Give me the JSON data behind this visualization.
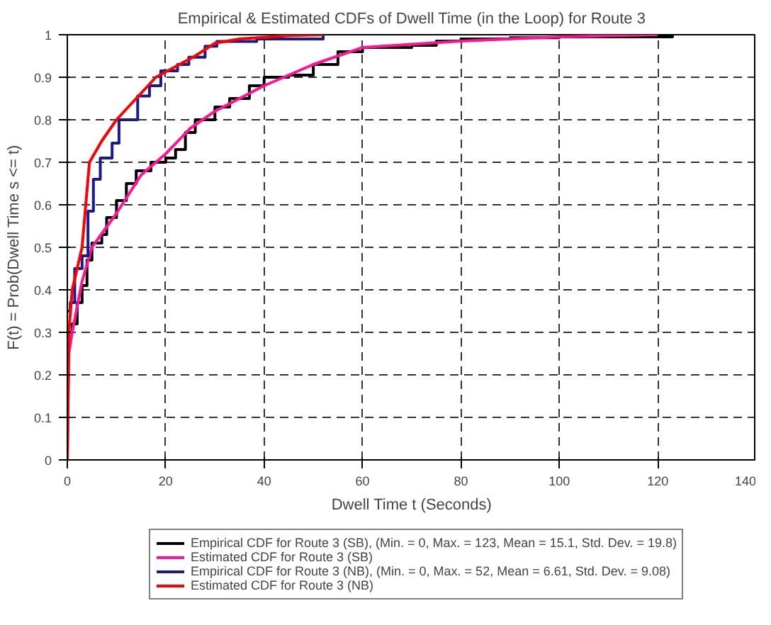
{
  "chart_data": {
    "type": "line",
    "title": "Empirical & Estimated CDFs of Dwell Time (in the Loop) for Route 3",
    "xlabel": "Dwell Time t (Seconds)",
    "ylabel": "F(t) = Prob(Dwell Time s <= t)",
    "xlim": [
      0,
      140
    ],
    "ylim": [
      0,
      1
    ],
    "xticks": [
      0,
      20,
      40,
      60,
      80,
      100,
      120,
      140
    ],
    "yticks": [
      0,
      0.1,
      0.2,
      0.3,
      0.4,
      0.5,
      0.6,
      0.7,
      0.8,
      0.9,
      1
    ],
    "grid": true,
    "legend": "bottom",
    "line_style": "solid",
    "series": [
      {
        "name": "Empirical CDF for Route 3 (SB), (Min. = 0, Max. = 123, Mean = 15.1, Std. Dev. = 19.8)",
        "type": "step",
        "color": "#000000",
        "x": [
          0,
          1,
          2,
          3,
          4,
          5,
          7,
          8,
          10,
          12,
          14,
          17,
          20,
          22,
          24,
          26,
          30,
          33,
          37,
          40,
          45,
          50,
          55,
          60,
          70,
          75,
          80,
          90,
          100,
          123
        ],
        "values": [
          0.3,
          0.32,
          0.37,
          0.41,
          0.47,
          0.51,
          0.53,
          0.57,
          0.61,
          0.65,
          0.68,
          0.7,
          0.71,
          0.73,
          0.77,
          0.8,
          0.83,
          0.85,
          0.88,
          0.9,
          0.905,
          0.93,
          0.96,
          0.97,
          0.975,
          0.985,
          0.99,
          0.993,
          0.995,
          1
        ]
      },
      {
        "name": "Estimated CDF for Route 3 (SB)",
        "color": "#ff1493",
        "x": [
          0,
          0.3,
          1,
          3,
          5,
          10,
          15,
          20,
          25,
          30,
          40,
          50,
          60,
          80,
          100,
          120
        ],
        "values": [
          0,
          0.25,
          0.3,
          0.42,
          0.5,
          0.58,
          0.67,
          0.72,
          0.78,
          0.82,
          0.88,
          0.93,
          0.97,
          0.985,
          0.995,
          1
        ]
      },
      {
        "name": "Empirical CDF for Route 3 (NB), (Min. = 0, Max. = 52, Mean = 6.61, Std. Dev. = 9.08)",
        "type": "step",
        "color": "#1a1a8c",
        "x": [
          0,
          0.6,
          1.5,
          3,
          4.2,
          5.3,
          6.7,
          9.1,
          10.5,
          14.3,
          16.7,
          19,
          22.4,
          24.7,
          28,
          30.4,
          38.5,
          52
        ],
        "values": [
          0.35,
          0.37,
          0.45,
          0.48,
          0.585,
          0.66,
          0.71,
          0.745,
          0.8,
          0.856,
          0.88,
          0.915,
          0.93,
          0.947,
          0.973,
          0.984,
          0.99,
          1
        ]
      },
      {
        "name": "Estimated CDF for Route 3 (NB)",
        "color": "#ff0000",
        "x": [
          0,
          0.3,
          1,
          3,
          4.5,
          7,
          10,
          14,
          18,
          22,
          26,
          30,
          35,
          45,
          52
        ],
        "values": [
          0,
          0.3,
          0.4,
          0.5,
          0.7,
          0.75,
          0.8,
          0.85,
          0.9,
          0.925,
          0.95,
          0.98,
          0.99,
          0.998,
          1
        ]
      }
    ]
  }
}
